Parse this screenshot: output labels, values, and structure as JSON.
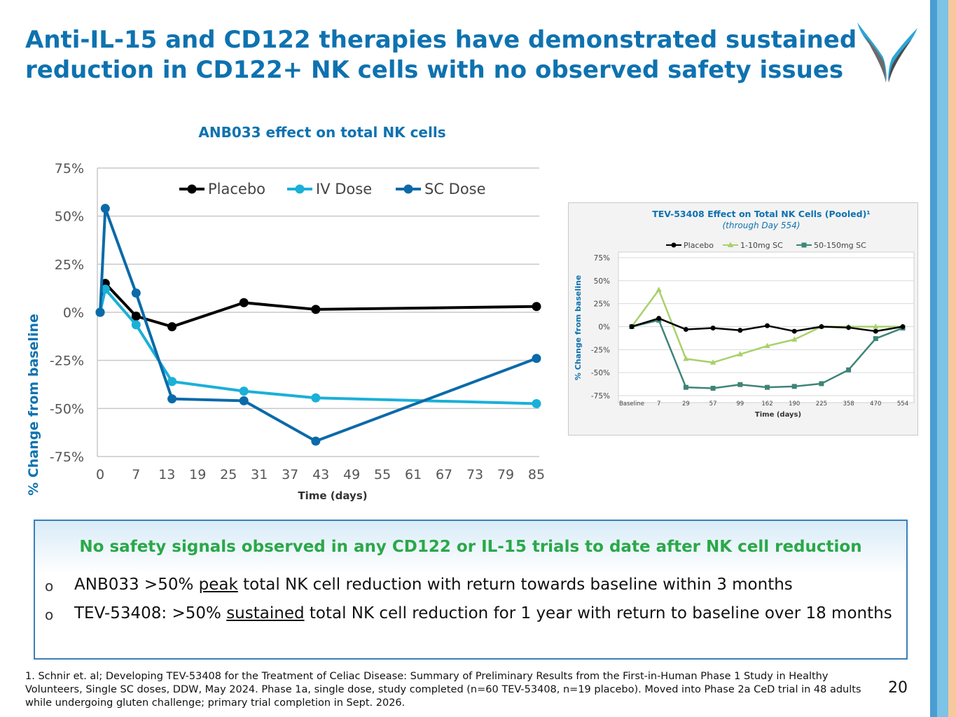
{
  "slide": {
    "title_line1": "Anti-IL-15 and CD122 therapies have demonstrated sustained",
    "title_line2": "reduction in CD122+ NK cells with no observed safety issues",
    "page_number": "20"
  },
  "colors": {
    "title": "#0e72b0",
    "safety_title": "#2aa84a",
    "box_border": "#3a7fb8",
    "placebo": "#000000",
    "iv": "#1ab0d8",
    "sc": "#0b6aa8",
    "low_sc": "#a8d16b",
    "high_sc": "#3e8478"
  },
  "safety": {
    "title": "No safety signals observed in any CD122 or IL-15 trials to date after NK cell reduction",
    "bullet_mark": "o",
    "b1_pre": "ANB033 >50% ",
    "b1_u": "peak",
    "b1_post": " total NK cell reduction with return towards baseline within 3 months",
    "b2_pre": "TEV-53408: >50% ",
    "b2_u": "sustained",
    "b2_post": " total NK cell reduction for 1 year with return to baseline over 18 months"
  },
  "footnote": "1. Schnir et. al; Developing TEV-53408 for the Treatment of Celiac Disease: Summary of Preliminary Results from the First-in-Human Phase 1 Study in Healthy Volunteers, Single SC doses, DDW, May 2024. Phase 1a, single dose, study completed (n=60 TEV-53408, n=19 placebo). Moved into Phase 2a CeD trial in 48 adults while undergoing gluten challenge; primary trial completion in Sept. 2026.",
  "chart_data": [
    {
      "type": "line",
      "title": "ANB033 effect on total NK cells",
      "xlabel": "Time (days)",
      "ylabel": "% Change from baseline",
      "xlim": [
        0,
        85
      ],
      "ylim": [
        -75,
        75
      ],
      "xticks": [
        0,
        7,
        13,
        19,
        25,
        31,
        37,
        43,
        49,
        55,
        61,
        67,
        73,
        79,
        85
      ],
      "yticks": [
        75,
        50,
        25,
        0,
        -25,
        -50,
        -75
      ],
      "ytick_labels": [
        "75%",
        "50%",
        "25%",
        "0%",
        "-25%",
        "-50%",
        "-75%"
      ],
      "legend": "top",
      "series": [
        {
          "name": "Placebo",
          "color": "#000000",
          "x": [
            0,
            1,
            7,
            14,
            28,
            42,
            85
          ],
          "y": [
            0,
            15,
            -2,
            -7.5,
            5,
            1.5,
            3
          ]
        },
        {
          "name": "IV Dose",
          "color": "#1ab0d8",
          "x": [
            0,
            1,
            7,
            14,
            28,
            42,
            85
          ],
          "y": [
            0,
            12,
            -6.5,
            -36,
            -41,
            -44.5,
            -47.5
          ]
        },
        {
          "name": "SC Dose",
          "color": "#0b6aa8",
          "x": [
            0,
            1,
            7,
            14,
            28,
            42,
            85
          ],
          "y": [
            0,
            54,
            10,
            -45,
            -46,
            -67,
            -24
          ]
        }
      ]
    },
    {
      "type": "line",
      "title": "TEV-53408 Effect on Total NK Cells (Pooled)¹",
      "subtitle": "(through Day 554)",
      "xlabel": "Time (days)",
      "ylabel": "% Change from baseline",
      "categories": [
        "Baseline",
        "7",
        "29",
        "57",
        "99",
        "162",
        "190",
        "225",
        "358",
        "470",
        "554"
      ],
      "ylim": [
        -75,
        75
      ],
      "yticks": [
        75,
        50,
        25,
        0,
        -25,
        -50,
        -75
      ],
      "ytick_labels": [
        "75%",
        "50%",
        "25%",
        "0%",
        "-25%",
        "-50%",
        "-75%"
      ],
      "legend": "top",
      "series": [
        {
          "name": "Placebo",
          "color": "#000000",
          "marker": "circle",
          "values": [
            0,
            9,
            -3,
            -1.5,
            -4,
            1,
            -5,
            0,
            -1,
            -5,
            0
          ]
        },
        {
          "name": "1-10mg SC",
          "color": "#a8d16b",
          "marker": "triangle",
          "values": [
            0,
            40,
            -35,
            -39,
            -30,
            -21,
            -14,
            0,
            0,
            0,
            0
          ]
        },
        {
          "name": "50-150mg SC",
          "color": "#3e8478",
          "marker": "square",
          "values": [
            0,
            7,
            -66,
            -67,
            -63,
            -66,
            -65,
            -62,
            -47,
            -13,
            -1.5
          ]
        }
      ]
    }
  ]
}
